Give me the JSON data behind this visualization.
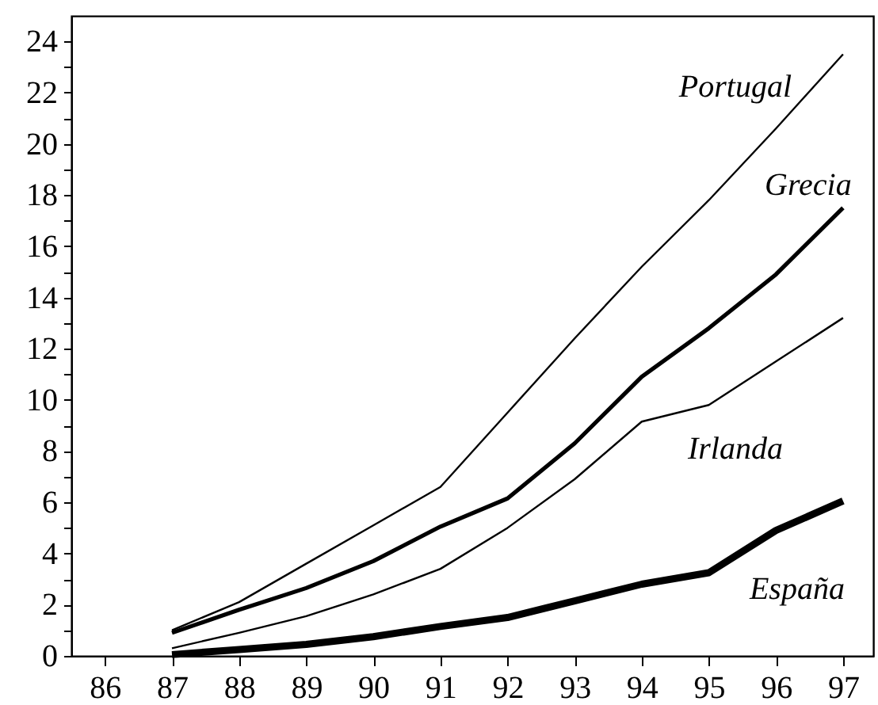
{
  "chart_data": {
    "type": "line",
    "x": [
      87,
      88,
      89,
      90,
      91,
      92,
      93,
      94,
      95,
      96,
      97
    ],
    "series": [
      {
        "name": "Portugal",
        "color": "#000000",
        "values": [
          1.0,
          2.1,
          3.6,
          5.1,
          6.6,
          9.5,
          12.4,
          15.2,
          17.8,
          20.6,
          23.5
        ]
      },
      {
        "name": "Grecia",
        "color": "#000000",
        "values": [
          0.9,
          1.8,
          2.65,
          3.7,
          5.05,
          6.15,
          8.3,
          10.9,
          12.8,
          14.9,
          17.5
        ]
      },
      {
        "name": "Irlanda",
        "color": "#000000",
        "values": [
          0.3,
          0.9,
          1.55,
          2.4,
          3.4,
          5.0,
          6.9,
          9.15,
          9.8,
          11.5,
          13.2
        ]
      },
      {
        "name": "España",
        "color": "#000000",
        "values": [
          0.05,
          0.25,
          0.45,
          0.75,
          1.15,
          1.5,
          2.15,
          2.8,
          3.25,
          4.9,
          6.05
        ]
      }
    ],
    "xlim": [
      85.5,
      97.45
    ],
    "xticks": [
      86,
      87,
      88,
      89,
      90,
      91,
      92,
      93,
      94,
      95,
      96,
      97
    ],
    "ylim": [
      0,
      25
    ],
    "yticks": [
      0,
      {
        "value": 1,
        "label": null
      },
      2,
      {
        "value": 3,
        "label": null
      },
      4,
      {
        "value": 5,
        "label": null
      },
      6,
      {
        "value": 7,
        "label": null
      },
      8,
      {
        "value": 9,
        "label": null
      },
      10,
      {
        "value": 11,
        "label": null
      },
      12,
      {
        "value": 13,
        "label": null
      },
      14,
      {
        "value": 15,
        "label": null
      },
      16,
      {
        "value": 17,
        "label": null
      },
      18,
      {
        "value": 19,
        "label": null
      },
      20,
      {
        "value": 21,
        "label": null
      },
      22,
      {
        "value": 23,
        "label": null
      },
      24
    ],
    "grid": false,
    "marker": "none",
    "line_style": "solid"
  }
}
